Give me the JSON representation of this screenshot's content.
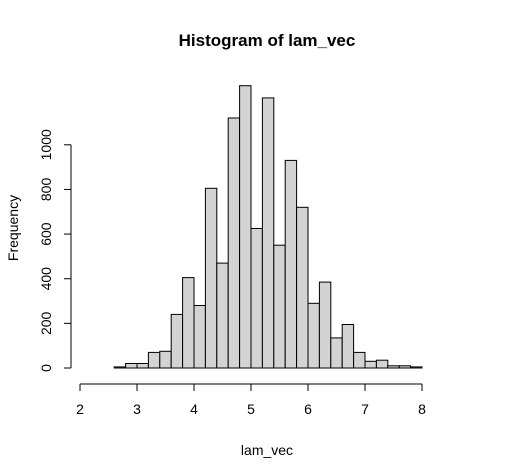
{
  "chart_data": {
    "type": "bar",
    "title": "Histogram of lam_vec",
    "xlabel": "lam_vec",
    "ylabel": "Frequency",
    "xlim": [
      2,
      8
    ],
    "ylim": [
      0,
      1200
    ],
    "x_ticks": [
      2,
      3,
      4,
      5,
      6,
      7,
      8
    ],
    "y_ticks": [
      0,
      200,
      400,
      600,
      800,
      1000
    ],
    "bin_width": 0.2,
    "bin_edges_start": 2.6,
    "values": [
      5,
      20,
      20,
      70,
      75,
      240,
      405,
      280,
      805,
      470,
      1120,
      1265,
      625,
      1210,
      550,
      930,
      720,
      290,
      385,
      135,
      195,
      70,
      30,
      35,
      10,
      10,
      5
    ],
    "grid": false,
    "legend": "none",
    "bar_fill": "#d3d3d3",
    "bar_stroke": "#000000"
  }
}
